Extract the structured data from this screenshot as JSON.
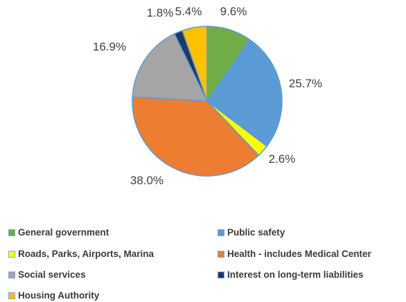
{
  "chart_data": {
    "type": "pie",
    "title": "",
    "slices": [
      {
        "name": "General government",
        "value": 9.6,
        "label": "9.6%",
        "color": "#70AD47"
      },
      {
        "name": "Public safety",
        "value": 25.7,
        "label": "25.7%",
        "color": "#5B9BD5"
      },
      {
        "name": "Roads, Parks, Airports, Marina",
        "value": 2.6,
        "label": "2.6%",
        "color": "#FFFF00"
      },
      {
        "name": "Health - includes Medical Center",
        "value": 38.0,
        "label": "38.0%",
        "color": "#ED7D31"
      },
      {
        "name": "Social services",
        "value": 16.9,
        "label": "16.9%",
        "color": "#A5A5A5"
      },
      {
        "name": "Interest on long-term liabilities",
        "value": 1.8,
        "label": "1.8%",
        "color": "#1F3864"
      },
      {
        "name": "Housing Authority",
        "value": 5.4,
        "label": "5.4%",
        "color": "#FFC000"
      }
    ],
    "start": "12 o'clock",
    "direction": "clockwise",
    "slice_border_color": "#5B9BD5",
    "legend_position": "bottom"
  }
}
